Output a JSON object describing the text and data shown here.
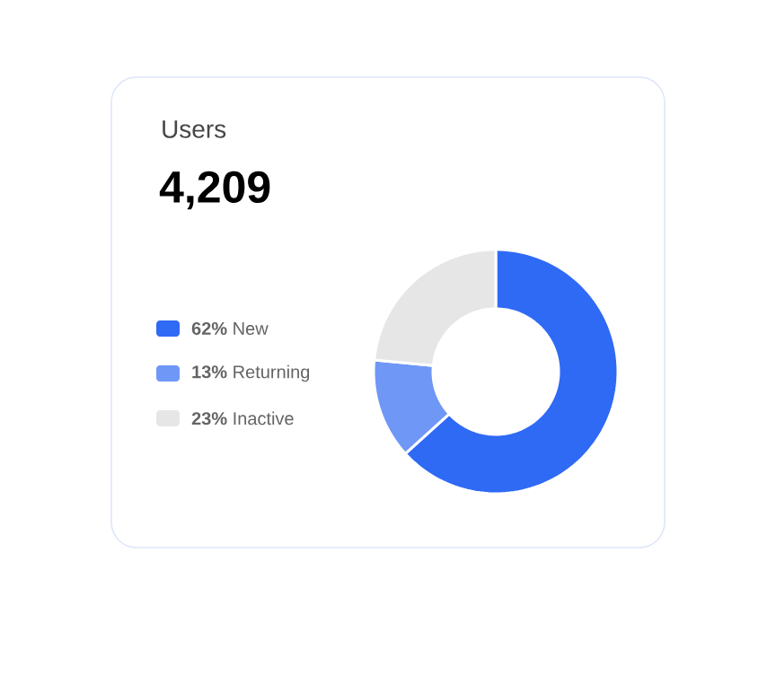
{
  "chart_data": {
    "type": "donut",
    "title": "Users",
    "subtitle": "4,209",
    "categories": [
      "**62%** New",
      "**13%** Returning",
      "**23%** Inactive"
    ],
    "values": [
      62,
      13,
      23
    ],
    "colors": [
      "#2f6af5",
      "#6f97f6",
      "#e6e6e6"
    ],
    "legend": "left"
  }
}
